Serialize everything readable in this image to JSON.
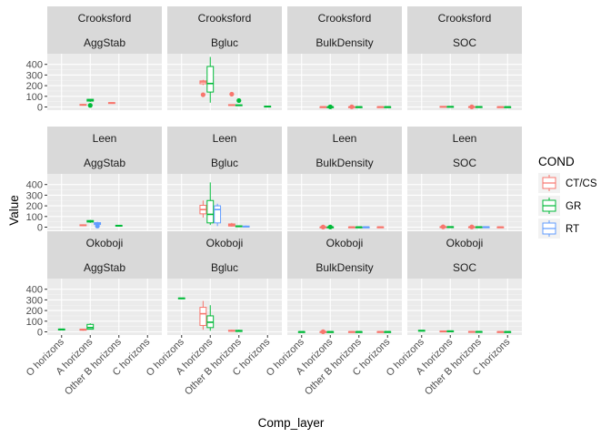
{
  "chart_data": {
    "type": "boxplot-facet",
    "xlabel": "Comp_layer",
    "ylabel": "Value",
    "x_categories": [
      "O horizons",
      "A horizons",
      "Other B horizons",
      "C horizons"
    ],
    "y_ticks": [
      0,
      100,
      200,
      300,
      400
    ],
    "ylim": [
      -30,
      500
    ],
    "rows": [
      "Crooksford",
      "Leen",
      "Okoboji"
    ],
    "cols": [
      "AggStab",
      "Bgluc",
      "BulkDensity",
      "SOC"
    ],
    "legend": {
      "title": "COND",
      "position": "right",
      "items": [
        {
          "label": "CT/CS",
          "color": "#F8766D"
        },
        {
          "label": "GR",
          "color": "#00BA38"
        },
        {
          "label": "RT",
          "color": "#619CFF"
        }
      ]
    },
    "panels": [
      {
        "row": "Crooksford",
        "col": "AggStab",
        "boxes": [
          {
            "x": "A horizons",
            "group": "CT/CS",
            "min": 12,
            "q1": 16,
            "median": 20,
            "q3": 24,
            "max": 28,
            "outliers": []
          },
          {
            "x": "A horizons",
            "group": "GR",
            "min": 48,
            "q1": 55,
            "median": 65,
            "q3": 72,
            "max": 76,
            "outliers": [
              15
            ]
          },
          {
            "x": "Other B horizons",
            "group": "CT/CS",
            "min": 30,
            "q1": 34,
            "median": 38,
            "q3": 41,
            "max": 44,
            "outliers": []
          }
        ]
      },
      {
        "row": "Crooksford",
        "col": "Bgluc",
        "boxes": [
          {
            "x": "A horizons",
            "group": "CT/CS",
            "min": 205,
            "q1": 218,
            "median": 235,
            "q3": 245,
            "max": 255,
            "outliers": [
              115
            ]
          },
          {
            "x": "A horizons",
            "group": "GR",
            "min": 40,
            "q1": 140,
            "median": 220,
            "q3": 380,
            "max": 470,
            "outliers": []
          },
          {
            "x": "Other B horizons",
            "group": "CT/CS",
            "min": 12,
            "q1": 15,
            "median": 18,
            "q3": 22,
            "max": 25,
            "outliers": [
              120
            ]
          },
          {
            "x": "Other B horizons",
            "group": "GR",
            "min": 10,
            "q1": 13,
            "median": 16,
            "q3": 20,
            "max": 24,
            "outliers": [
              60
            ]
          },
          {
            "x": "C horizons",
            "group": "GR",
            "min": 2,
            "q1": 4,
            "median": 6,
            "q3": 8,
            "max": 10,
            "outliers": []
          }
        ]
      },
      {
        "row": "Crooksford",
        "col": "BulkDensity",
        "boxes": [
          {
            "x": "A horizons",
            "group": "CT/CS",
            "min": 0,
            "q1": 1,
            "median": 1.3,
            "q3": 1.5,
            "max": 2,
            "outliers": []
          },
          {
            "x": "A horizons",
            "group": "GR",
            "min": 0,
            "q1": 1,
            "median": 1.3,
            "q3": 1.5,
            "max": 2,
            "outliers": [
              1.3
            ]
          },
          {
            "x": "Other B horizons",
            "group": "CT/CS",
            "min": 0,
            "q1": 1,
            "median": 1.4,
            "q3": 1.6,
            "max": 2,
            "outliers": [
              1.4
            ]
          },
          {
            "x": "Other B horizons",
            "group": "GR",
            "min": 0,
            "q1": 1,
            "median": 1.4,
            "q3": 1.6,
            "max": 2,
            "outliers": []
          },
          {
            "x": "C horizons",
            "group": "CT/CS",
            "min": 0,
            "q1": 1,
            "median": 1.5,
            "q3": 1.7,
            "max": 2,
            "outliers": []
          },
          {
            "x": "C horizons",
            "group": "GR",
            "min": 0,
            "q1": 1,
            "median": 1.5,
            "q3": 1.7,
            "max": 2,
            "outliers": []
          }
        ]
      },
      {
        "row": "Crooksford",
        "col": "SOC",
        "boxes": [
          {
            "x": "A horizons",
            "group": "CT/CS",
            "min": 0,
            "q1": 2,
            "median": 3,
            "q3": 5,
            "max": 7,
            "outliers": []
          },
          {
            "x": "A horizons",
            "group": "GR",
            "min": 0,
            "q1": 2,
            "median": 3,
            "q3": 5,
            "max": 7,
            "outliers": []
          },
          {
            "x": "Other B horizons",
            "group": "CT/CS",
            "min": 0,
            "q1": 1,
            "median": 2,
            "q3": 3,
            "max": 5,
            "outliers": [
              1
            ]
          },
          {
            "x": "Other B horizons",
            "group": "GR",
            "min": 0,
            "q1": 1,
            "median": 2,
            "q3": 3,
            "max": 5,
            "outliers": []
          },
          {
            "x": "C horizons",
            "group": "CT/CS",
            "min": 0,
            "q1": 0.5,
            "median": 1,
            "q3": 1.5,
            "max": 2,
            "outliers": []
          },
          {
            "x": "C horizons",
            "group": "GR",
            "min": 0,
            "q1": 0.5,
            "median": 1,
            "q3": 1.5,
            "max": 2,
            "outliers": []
          }
        ]
      },
      {
        "row": "Leen",
        "col": "AggStab",
        "boxes": [
          {
            "x": "A horizons",
            "group": "CT/CS",
            "min": 10,
            "q1": 14,
            "median": 18,
            "q3": 22,
            "max": 26,
            "outliers": []
          },
          {
            "x": "A horizons",
            "group": "GR",
            "min": 40,
            "q1": 48,
            "median": 55,
            "q3": 62,
            "max": 68,
            "outliers": []
          },
          {
            "x": "A horizons",
            "group": "RT",
            "min": 15,
            "q1": 25,
            "median": 35,
            "q3": 42,
            "max": 50,
            "outliers": [
              10
            ]
          },
          {
            "x": "Other B horizons",
            "group": "GR",
            "min": 10,
            "q1": 13,
            "median": 15,
            "q3": 17,
            "max": 20,
            "outliers": []
          }
        ]
      },
      {
        "row": "Leen",
        "col": "Bgluc",
        "boxes": [
          {
            "x": "A horizons",
            "group": "CT/CS",
            "min": 90,
            "q1": 125,
            "median": 165,
            "q3": 205,
            "max": 250,
            "outliers": []
          },
          {
            "x": "A horizons",
            "group": "GR",
            "min": 20,
            "q1": 40,
            "median": 120,
            "q3": 250,
            "max": 420,
            "outliers": []
          },
          {
            "x": "A horizons",
            "group": "RT",
            "min": 10,
            "q1": 40,
            "median": 165,
            "q3": 200,
            "max": 220,
            "outliers": []
          },
          {
            "x": "Other B horizons",
            "group": "CT/CS",
            "min": 5,
            "q1": 10,
            "median": 20,
            "q3": 30,
            "max": 40,
            "outliers": []
          },
          {
            "x": "Other B horizons",
            "group": "GR",
            "min": 2,
            "q1": 5,
            "median": 8,
            "q3": 12,
            "max": 15,
            "outliers": []
          },
          {
            "x": "Other B horizons",
            "group": "RT",
            "min": 0,
            "q1": 3,
            "median": 6,
            "q3": 10,
            "max": 15,
            "outliers": []
          }
        ]
      },
      {
        "row": "Leen",
        "col": "BulkDensity",
        "boxes": [
          {
            "x": "A horizons",
            "group": "CT/CS",
            "min": 0,
            "q1": 1,
            "median": 1.3,
            "q3": 1.5,
            "max": 2,
            "outliers": [
              1.2
            ]
          },
          {
            "x": "A horizons",
            "group": "GR",
            "min": 0,
            "q1": 1,
            "median": 1.3,
            "q3": 1.5,
            "max": 2,
            "outliers": [
              1.3
            ]
          },
          {
            "x": "Other B horizons",
            "group": "CT/CS",
            "min": 0,
            "q1": 1,
            "median": 1.4,
            "q3": 1.6,
            "max": 2,
            "outliers": []
          },
          {
            "x": "Other B horizons",
            "group": "GR",
            "min": 0,
            "q1": 1,
            "median": 1.4,
            "q3": 1.6,
            "max": 2,
            "outliers": []
          },
          {
            "x": "Other B horizons",
            "group": "RT",
            "min": 0,
            "q1": 1,
            "median": 1.4,
            "q3": 1.6,
            "max": 2,
            "outliers": []
          },
          {
            "x": "C horizons",
            "group": "CT/CS",
            "min": 0,
            "q1": 1,
            "median": 1.5,
            "q3": 1.7,
            "max": 2,
            "outliers": []
          }
        ]
      },
      {
        "row": "Leen",
        "col": "SOC",
        "boxes": [
          {
            "x": "A horizons",
            "group": "CT/CS",
            "min": 0,
            "q1": 2,
            "median": 3,
            "q3": 4,
            "max": 6,
            "outliers": [
              3
            ]
          },
          {
            "x": "A horizons",
            "group": "GR",
            "min": 0,
            "q1": 2,
            "median": 3,
            "q3": 4,
            "max": 6,
            "outliers": []
          },
          {
            "x": "Other B horizons",
            "group": "CT/CS",
            "min": 0,
            "q1": 1,
            "median": 2,
            "q3": 3,
            "max": 4,
            "outliers": [
              2
            ]
          },
          {
            "x": "Other B horizons",
            "group": "GR",
            "min": 0,
            "q1": 1,
            "median": 2,
            "q3": 3,
            "max": 4,
            "outliers": []
          },
          {
            "x": "Other B horizons",
            "group": "RT",
            "min": 0,
            "q1": 1,
            "median": 2,
            "q3": 3,
            "max": 4,
            "outliers": []
          },
          {
            "x": "C horizons",
            "group": "CT/CS",
            "min": 0,
            "q1": 0.5,
            "median": 1,
            "q3": 1.5,
            "max": 2,
            "outliers": []
          }
        ]
      },
      {
        "row": "Okoboji",
        "col": "AggStab",
        "boxes": [
          {
            "x": "O horizons",
            "group": "GR",
            "min": 20,
            "q1": 22,
            "median": 24,
            "q3": 26,
            "max": 28,
            "outliers": []
          },
          {
            "x": "A horizons",
            "group": "CT/CS",
            "min": 10,
            "q1": 15,
            "median": 20,
            "q3": 25,
            "max": 30,
            "outliers": []
          },
          {
            "x": "A horizons",
            "group": "GR",
            "min": 20,
            "q1": 25,
            "median": 40,
            "q3": 70,
            "max": 80,
            "outliers": []
          }
        ]
      },
      {
        "row": "Okoboji",
        "col": "Bgluc",
        "boxes": [
          {
            "x": "O horizons",
            "group": "GR",
            "min": 310,
            "q1": 312,
            "median": 315,
            "q3": 318,
            "max": 320,
            "outliers": []
          },
          {
            "x": "A horizons",
            "group": "CT/CS",
            "min": 20,
            "q1": 60,
            "median": 170,
            "q3": 230,
            "max": 290,
            "outliers": []
          },
          {
            "x": "A horizons",
            "group": "GR",
            "min": 10,
            "q1": 40,
            "median": 90,
            "q3": 150,
            "max": 250,
            "outliers": []
          },
          {
            "x": "Other B horizons",
            "group": "CT/CS",
            "min": 2,
            "q1": 5,
            "median": 10,
            "q3": 15,
            "max": 20,
            "outliers": []
          },
          {
            "x": "Other B horizons",
            "group": "GR",
            "min": 0,
            "q1": 3,
            "median": 8,
            "q3": 14,
            "max": 20,
            "outliers": []
          }
        ]
      },
      {
        "row": "Okoboji",
        "col": "BulkDensity",
        "boxes": [
          {
            "x": "O horizons",
            "group": "GR",
            "min": 0,
            "q1": 1,
            "median": 1.3,
            "q3": 1.5,
            "max": 2,
            "outliers": []
          },
          {
            "x": "A horizons",
            "group": "CT/CS",
            "min": 0,
            "q1": 1,
            "median": 1.3,
            "q3": 1.5,
            "max": 2,
            "outliers": [
              1.2
            ]
          },
          {
            "x": "A horizons",
            "group": "GR",
            "min": 0,
            "q1": 1,
            "median": 1.3,
            "q3": 1.5,
            "max": 2,
            "outliers": []
          },
          {
            "x": "Other B horizons",
            "group": "CT/CS",
            "min": 0,
            "q1": 1,
            "median": 1.4,
            "q3": 1.6,
            "max": 2,
            "outliers": []
          },
          {
            "x": "Other B horizons",
            "group": "GR",
            "min": 0,
            "q1": 1,
            "median": 1.4,
            "q3": 1.6,
            "max": 2,
            "outliers": []
          },
          {
            "x": "C horizons",
            "group": "CT/CS",
            "min": 0,
            "q1": 1,
            "median": 1.5,
            "q3": 1.7,
            "max": 2,
            "outliers": []
          },
          {
            "x": "C horizons",
            "group": "GR",
            "min": 0,
            "q1": 1,
            "median": 1.5,
            "q3": 1.7,
            "max": 2,
            "outliers": []
          }
        ]
      },
      {
        "row": "Okoboji",
        "col": "SOC",
        "boxes": [
          {
            "x": "O horizons",
            "group": "GR",
            "min": 8,
            "q1": 10,
            "median": 12,
            "q3": 14,
            "max": 16,
            "outliers": []
          },
          {
            "x": "A horizons",
            "group": "CT/CS",
            "min": 2,
            "q1": 4,
            "median": 6,
            "q3": 8,
            "max": 10,
            "outliers": []
          },
          {
            "x": "A horizons",
            "group": "GR",
            "min": 3,
            "q1": 5,
            "median": 7,
            "q3": 9,
            "max": 11,
            "outliers": []
          },
          {
            "x": "Other B horizons",
            "group": "CT/CS",
            "min": 0,
            "q1": 1,
            "median": 2,
            "q3": 3,
            "max": 4,
            "outliers": []
          },
          {
            "x": "Other B horizons",
            "group": "GR",
            "min": 0,
            "q1": 1,
            "median": 2,
            "q3": 3,
            "max": 4,
            "outliers": []
          },
          {
            "x": "C horizons",
            "group": "CT/CS",
            "min": 0,
            "q1": 0.5,
            "median": 1,
            "q3": 1.5,
            "max": 2,
            "outliers": []
          },
          {
            "x": "C horizons",
            "group": "GR",
            "min": 0,
            "q1": 0.5,
            "median": 1,
            "q3": 1.5,
            "max": 2,
            "outliers": []
          }
        ]
      }
    ]
  }
}
